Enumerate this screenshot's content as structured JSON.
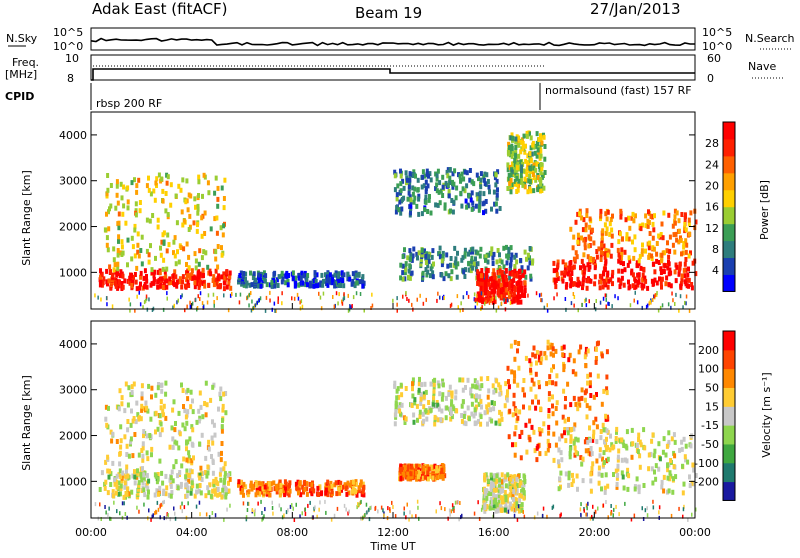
{
  "header": {
    "station": "Adak East (fitACF)",
    "beam": "Beam 19",
    "date": "27/Jan/2013"
  },
  "top_panels": {
    "nsky_label": "N.Sky",
    "nsky_ticks": [
      "10^5",
      "10^0"
    ],
    "nsearch_label": "N.Search",
    "nsearch_ticks": [
      "10^5",
      "10^0"
    ],
    "freq_label_1": "Freq.",
    "freq_label_2": "[MHz]",
    "freq_ticks": [
      "10",
      "8"
    ],
    "nave_label": "Nave",
    "nave_ticks": [
      "60",
      "0"
    ],
    "cpid_label": "CPID",
    "cpid_segments": [
      "rbsp 200 RF",
      "normalsound (fast) 157 RF"
    ]
  },
  "chart_data": [
    {
      "type": "heatmap",
      "name": "power",
      "ylabel": "Slant Range [km]",
      "y_ticks": [
        "4000",
        "3000",
        "2000",
        "1000"
      ],
      "ylim": [
        200,
        4500
      ],
      "colorbar_label": "Power [dB]",
      "colorbar_ticks": [
        "28",
        "24",
        "20",
        "16",
        "12",
        "8",
        "4"
      ],
      "colorbar_colors": [
        "#0000ff",
        "#1a3fb0",
        "#2e7d7d",
        "#3b9e55",
        "#9acd32",
        "#ffd000",
        "#ffa000",
        "#ff6000",
        "#ff2000",
        "#ff0000"
      ],
      "regions": [
        {
          "t0": 0.3,
          "t1": 5.5,
          "r0": 700,
          "r1": 1100,
          "level": 0.92
        },
        {
          "t0": 0.5,
          "t1": 5.3,
          "r0": 1100,
          "r1": 3200,
          "level": 0.55
        },
        {
          "t0": 5.8,
          "t1": 10.8,
          "r0": 750,
          "r1": 1050,
          "level": 0.18
        },
        {
          "t0": 12.0,
          "t1": 16.2,
          "r0": 2300,
          "r1": 3300,
          "level": 0.25
        },
        {
          "t0": 12.2,
          "t1": 17.5,
          "r0": 900,
          "r1": 1600,
          "level": 0.3
        },
        {
          "t0": 15.3,
          "t1": 17.2,
          "r0": 400,
          "r1": 1100,
          "level": 0.95
        },
        {
          "t0": 16.5,
          "t1": 18.0,
          "r0": 2800,
          "r1": 4100,
          "level": 0.45
        },
        {
          "t0": 18.2,
          "t1": 24.0,
          "r0": 700,
          "r1": 1300,
          "level": 0.95
        },
        {
          "t0": 19.0,
          "t1": 24.0,
          "r0": 1300,
          "r1": 2400,
          "level": 0.7
        }
      ]
    },
    {
      "type": "heatmap",
      "name": "velocity",
      "ylabel": "Slant Range [km]",
      "y_ticks": [
        "4000",
        "3000",
        "2000",
        "1000"
      ],
      "ylim": [
        200,
        4500
      ],
      "xlabel": "Time UT",
      "x_ticks": [
        "00:00",
        "04:00",
        "08:00",
        "12:00",
        "16:00",
        "20:00",
        "00:00"
      ],
      "xlim": [
        0,
        24
      ],
      "colorbar_label": "Velocity [m s⁻¹]",
      "colorbar_ticks": [
        "200",
        "100",
        "50",
        "15",
        "-15",
        "-50",
        "-100",
        "-200"
      ],
      "colorbar_colors": [
        "#1a1aa0",
        "#1f7a6e",
        "#3fa840",
        "#8ed64e",
        "#c8c8c8",
        "#ffcc33",
        "#ff8800",
        "#ff4400",
        "#ff0000"
      ],
      "regions": [
        {
          "t0": 0.3,
          "t1": 5.5,
          "r0": 700,
          "r1": 1300,
          "level": 0.5
        },
        {
          "t0": 0.5,
          "t1": 5.3,
          "r0": 1300,
          "r1": 3200,
          "level": 0.52
        },
        {
          "t0": 5.8,
          "t1": 10.8,
          "r0": 750,
          "r1": 1050,
          "level": 0.78
        },
        {
          "t0": 12.0,
          "t1": 16.5,
          "r0": 2300,
          "r1": 3300,
          "level": 0.5
        },
        {
          "t0": 12.2,
          "t1": 14.0,
          "r0": 1100,
          "r1": 1400,
          "level": 0.75
        },
        {
          "t0": 15.5,
          "t1": 17.2,
          "r0": 400,
          "r1": 1200,
          "level": 0.5
        },
        {
          "t0": 16.5,
          "t1": 20.5,
          "r0": 1500,
          "r1": 4100,
          "level": 0.75
        },
        {
          "t0": 18.5,
          "t1": 24.0,
          "r0": 800,
          "r1": 2200,
          "level": 0.5
        }
      ]
    }
  ]
}
